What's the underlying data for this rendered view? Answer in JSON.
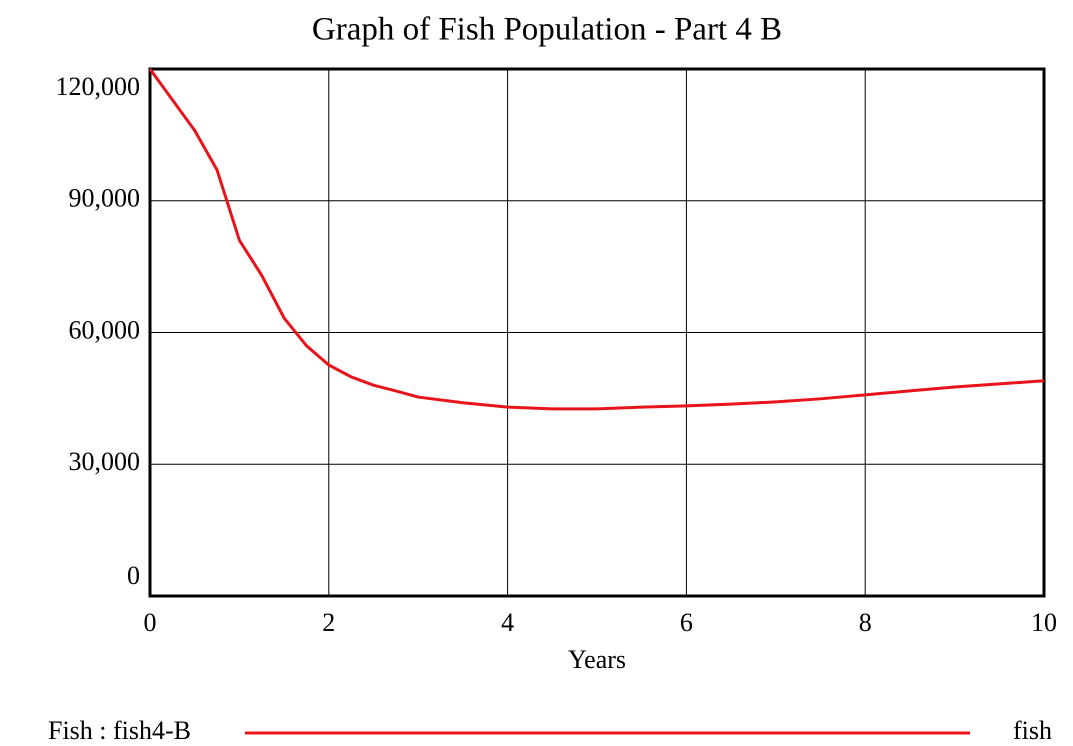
{
  "chart_data": {
    "type": "line",
    "title": "Graph of Fish Population - Part 4 B",
    "x_label": "Years",
    "x": [
      0,
      0.25,
      0.5,
      0.75,
      1,
      1.25,
      1.5,
      1.75,
      2,
      2.25,
      2.5,
      2.75,
      3,
      3.5,
      4,
      4.5,
      5,
      5.5,
      6,
      6.5,
      7,
      7.5,
      8,
      8.5,
      9,
      9.5,
      10
    ],
    "series": [
      {
        "name": "Fish : fish4-B",
        "units": "fish",
        "color": "#e8141b",
        "values": [
          120000,
          113000,
          106000,
          97000,
          81000,
          73000,
          63300,
          57000,
          52600,
          49900,
          48000,
          46700,
          45300,
          44000,
          43000,
          42600,
          42600,
          43000,
          43300,
          43700,
          44200,
          44900,
          45800,
          46700,
          47600,
          48300,
          49000
        ]
      }
    ],
    "xlim": [
      0,
      10
    ],
    "xticks": [
      0,
      2,
      4,
      6,
      8,
      10
    ],
    "ylim": [
      0,
      120000
    ],
    "yticks": [
      0,
      {
        "value": 30000,
        "label": "30,000"
      },
      {
        "value": 60000,
        "label": "60,000"
      },
      {
        "value": 90000,
        "label": "90,000"
      },
      {
        "value": 120000,
        "label": "120,000"
      }
    ],
    "grid": true
  }
}
